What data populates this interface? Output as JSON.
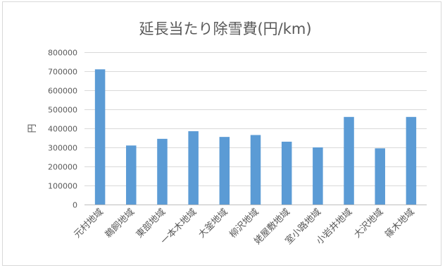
{
  "chart_data": {
    "type": "bar",
    "title": "延長当たり除雪費(円/km)",
    "xlabel": "",
    "ylabel": "円",
    "categories": [
      "元村地域",
      "鵜飼地域",
      "東部地域",
      "一本木地域",
      "大釜地域",
      "柳沢地域",
      "姥屋敷地域",
      "室小路地域",
      "小岩井地域",
      "大沢地域",
      "篠木地域"
    ],
    "values": [
      710000,
      310000,
      345000,
      385000,
      355000,
      365000,
      330000,
      300000,
      460000,
      295000,
      460000
    ],
    "ylim": [
      0,
      800000
    ],
    "yticks": [
      0,
      100000,
      200000,
      300000,
      400000,
      500000,
      600000,
      700000,
      800000
    ],
    "grid": true,
    "legend": "none"
  },
  "colors": {
    "bar": "#5B9BD5",
    "grid": "#D9D9D9",
    "axis": "#BFBFBF",
    "text": "#595959",
    "frame": "#D9D9D9"
  }
}
